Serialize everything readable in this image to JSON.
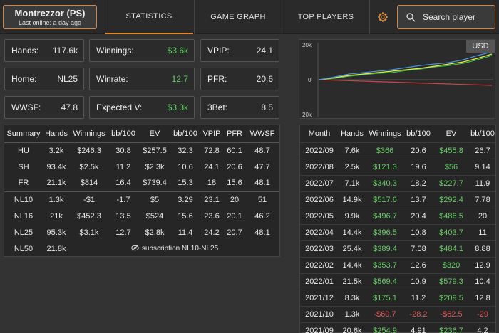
{
  "header": {
    "player_name": "Montrezzor (PS)",
    "last_online": "Last online: a day ago",
    "tabs": [
      "STATISTICS",
      "GAME GRAPH",
      "TOP PLAYERS"
    ],
    "search_placeholder": "Search player"
  },
  "stats": {
    "hands": {
      "label": "Hands:",
      "value": "117.6k"
    },
    "home": {
      "label": "Home:",
      "value": "NL25"
    },
    "wwsf": {
      "label": "WWSF:",
      "value": "47.8"
    },
    "winnings": {
      "label": "Winnings:",
      "value": "$3.6k"
    },
    "winrate": {
      "label": "Winrate:",
      "value": "12.7"
    },
    "expected": {
      "label": "Expected V:",
      "value": "$3.3k"
    },
    "vpip": {
      "label": "VPIP:",
      "value": "24.1"
    },
    "pfr": {
      "label": "PFR:",
      "value": "20.6"
    },
    "threebet": {
      "label": "3Bet:",
      "value": "8.5"
    }
  },
  "graph": {
    "currency": "USD",
    "y_labels": [
      "20k",
      "0",
      "20k"
    ],
    "colors": {
      "blue": "#4a8fd8",
      "yellow": "#e8e84a",
      "green": "#3db54a",
      "red": "#cc4444"
    }
  },
  "summary_table": {
    "headers": [
      "Summary",
      "Hands",
      "Winnings",
      "bb/100",
      "EV",
      "bb/100",
      "VPIP",
      "PFR",
      "WWSF"
    ],
    "rows": [
      [
        "HU",
        "3.2k",
        "$246.3",
        "30.8",
        "$257.5",
        "32.3",
        "72.8",
        "60.1",
        "48.7"
      ],
      [
        "SH",
        "93.4k",
        "$2.5k",
        "11.2",
        "$2.3k",
        "10.6",
        "24.1",
        "20.6",
        "47.7"
      ],
      [
        "FR",
        "21.1k",
        "$814",
        "16.4",
        "$739.4",
        "15.3",
        "18",
        "15.6",
        "48.1"
      ]
    ],
    "limit_rows": [
      [
        "NL10",
        "1.3k",
        "-$1",
        "-1.7",
        "$5",
        "3.29",
        "23.1",
        "20",
        "51"
      ],
      [
        "NL16",
        "21k",
        "$452.3",
        "13.5",
        "$524",
        "15.6",
        "23.6",
        "20.1",
        "46.2"
      ],
      [
        "NL25",
        "95.3k",
        "$3.1k",
        "12.7",
        "$2.8k",
        "11.4",
        "24.2",
        "20.7",
        "48.1"
      ]
    ],
    "nl50": {
      "limit": "NL50",
      "hands": "21.8k",
      "note": "subscription NL10-NL25"
    }
  },
  "month_table": {
    "headers": [
      "Month",
      "Hands",
      "Winnings",
      "bb/100",
      "EV",
      "bb/100"
    ],
    "rows": [
      [
        "2022/09",
        "7.6k",
        "$366",
        "20.6",
        "$455.8",
        "26.7"
      ],
      [
        "2022/08",
        "2.5k",
        "$121.3",
        "19.6",
        "$56",
        "9.14"
      ],
      [
        "2022/07",
        "7.1k",
        "$340.3",
        "18.2",
        "$227.7",
        "11.9"
      ],
      [
        "2022/06",
        "14.9k",
        "$517.6",
        "13.7",
        "$292.4",
        "7.78"
      ],
      [
        "2022/05",
        "9.9k",
        "$496.7",
        "20.4",
        "$486.5",
        "20"
      ],
      [
        "2022/04",
        "14.4k",
        "$396.5",
        "10.8",
        "$403.7",
        "11"
      ],
      [
        "2022/03",
        "25.4k",
        "$389.4",
        "7.08",
        "$484.1",
        "8.88"
      ],
      [
        "2022/02",
        "14.4k",
        "$353.7",
        "12.6",
        "$320",
        "12.9"
      ],
      [
        "2022/01",
        "21.5k",
        "$569.4",
        "10.9",
        "$579.3",
        "10.4"
      ],
      [
        "2021/12",
        "8.3k",
        "$175.1",
        "11.2",
        "$209.5",
        "12.8"
      ],
      [
        "2021/10",
        "1.3k",
        "-$60.7",
        "-28.2",
        "-$62.5",
        "-29"
      ],
      [
        "2021/09",
        "20.6k",
        "$254.9",
        "4.91",
        "$236.7",
        "4.2"
      ]
    ]
  }
}
